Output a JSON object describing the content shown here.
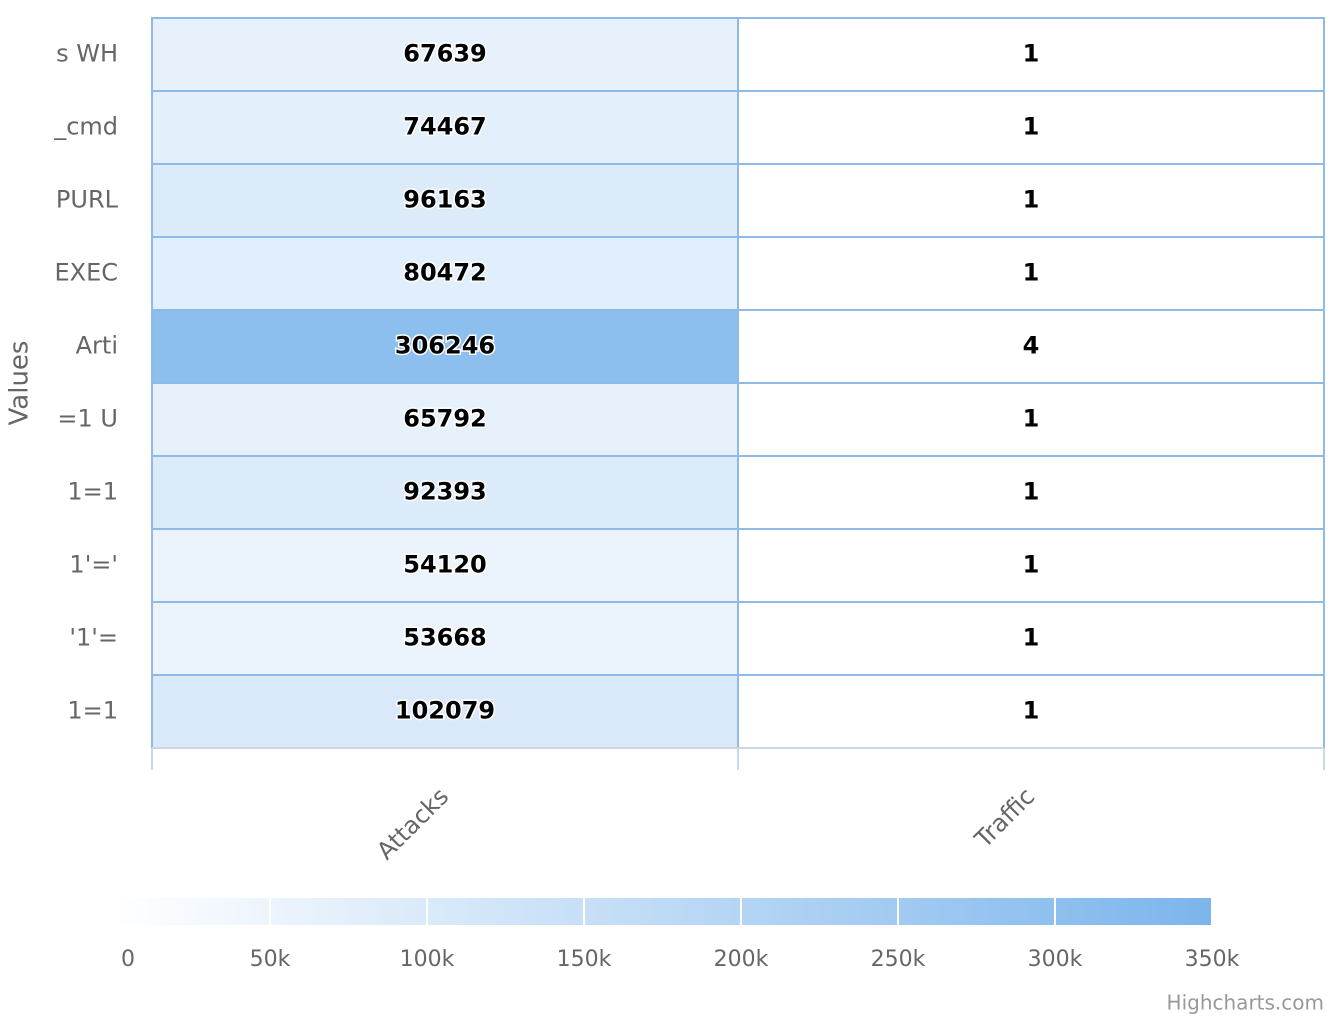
{
  "chart_data": {
    "type": "heatmap",
    "y_title": "Values",
    "categories": [
      "Attacks",
      "Traffic"
    ],
    "y_categories": [
      "s WH",
      "_cmd",
      "PURL",
      "EXEC",
      "Arti",
      "=1 U",
      "1=1",
      "1'='",
      "'1'=",
      "1=1"
    ],
    "values": [
      [
        67639,
        1
      ],
      [
        74467,
        1
      ],
      [
        96163,
        1
      ],
      [
        80472,
        1
      ],
      [
        306246,
        4
      ],
      [
        65792,
        1
      ],
      [
        92393,
        1
      ],
      [
        54120,
        1
      ],
      [
        53668,
        1
      ],
      [
        102079,
        1
      ]
    ],
    "min_color": "#ffffff",
    "max_color": "#7cb5ec",
    "border_color": "#8fb9e6",
    "colorlim": [
      0,
      350000
    ],
    "colorticks": [
      0,
      {
        "value": 50000,
        "label": "50k"
      },
      {
        "value": 100000,
        "label": "100k"
      },
      {
        "value": 150000,
        "label": "150k"
      },
      {
        "value": 200000,
        "label": "200k"
      },
      {
        "value": 250000,
        "label": "250k"
      },
      {
        "value": 300000,
        "label": "300k"
      },
      {
        "value": 350000,
        "label": "350k"
      }
    ],
    "credits": "Highcharts.com"
  }
}
